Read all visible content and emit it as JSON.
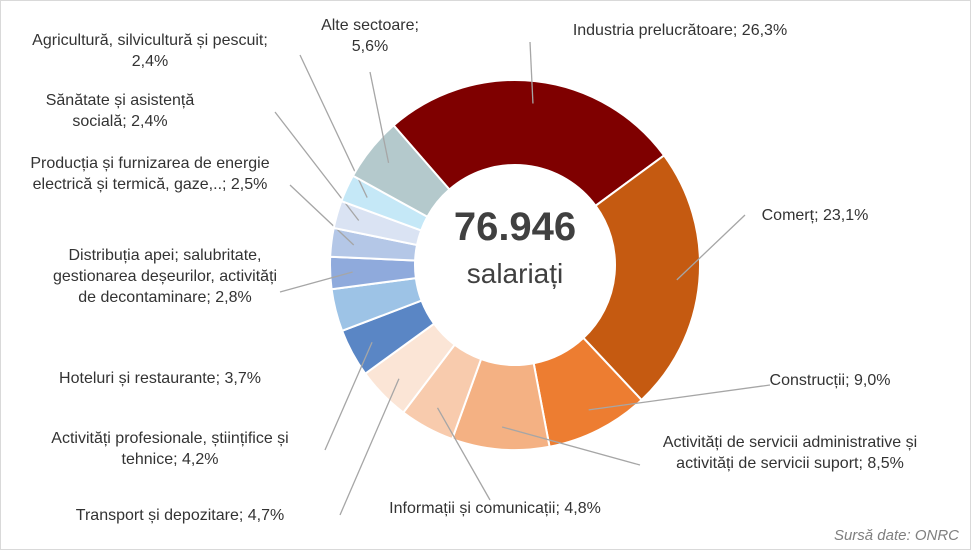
{
  "chart_data": {
    "type": "donut",
    "center_value": "76.946",
    "center_label": "salariați",
    "source": "Sursă date: ONRC",
    "categories": [
      "Industria prelucrătoare;",
      "Comerț;",
      "Construcții;",
      "Activități de servicii administrative și activități de servicii suport;",
      "Informații și comunicații;",
      "Transport și depozitare;",
      "Activități profesionale, științifice și tehnice;",
      "Hoteluri și restaurante;",
      "Distribuția apei; salubritate, gestionarea deșeurilor, activități de decontaminare;",
      "Producția și furnizarea de energie electrică și termică, gaze,..;",
      "Sănătate și asistență socială;",
      "Agricultură, silvicultură și pescuit;",
      "Alte sectoare;"
    ],
    "values": [
      26.3,
      23.1,
      9.0,
      8.5,
      4.8,
      4.7,
      4.2,
      3.7,
      2.8,
      2.5,
      2.4,
      2.4,
      5.6
    ],
    "value_labels": [
      "26,3%",
      "23,1%",
      "9,0%",
      "8,5%",
      "4,8%",
      "4,7%",
      "4,2%",
      "3,7%",
      "2,8%",
      "2,5%",
      "2,4%",
      "2,4%",
      "5,6%"
    ],
    "colors": [
      "#7f0000",
      "#c55a11",
      "#ed7d31",
      "#f4b183",
      "#f8cbad",
      "#fbe5d6",
      "#5a86c5",
      "#9dc3e6",
      "#8faadc",
      "#b4c7e7",
      "#dae3f3",
      "#c5e8f7",
      "#b4c9cc"
    ]
  }
}
